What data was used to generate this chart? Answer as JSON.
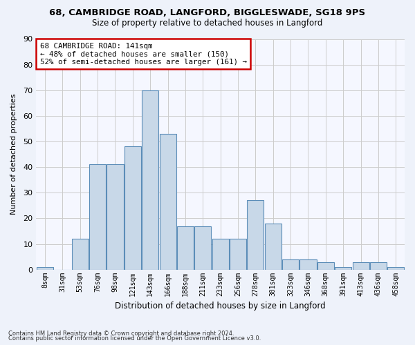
{
  "title1": "68, CAMBRIDGE ROAD, LANGFORD, BIGGLESWADE, SG18 9PS",
  "title2": "Size of property relative to detached houses in Langford",
  "xlabel": "Distribution of detached houses by size in Langford",
  "ylabel": "Number of detached properties",
  "bin_labels": [
    "8sqm",
    "31sqm",
    "53sqm",
    "76sqm",
    "98sqm",
    "121sqm",
    "143sqm",
    "166sqm",
    "188sqm",
    "211sqm",
    "233sqm",
    "256sqm",
    "278sqm",
    "301sqm",
    "323sqm",
    "346sqm",
    "368sqm",
    "391sqm",
    "413sqm",
    "436sqm",
    "458sqm"
  ],
  "bar_heights": [
    1,
    0,
    12,
    41,
    41,
    48,
    70,
    53,
    17,
    17,
    12,
    12,
    27,
    18,
    4,
    4,
    3,
    1,
    3,
    3,
    1
  ],
  "bar_color": "#c8d8e8",
  "bar_edge_color": "#5b8db8",
  "annotation_line1": "68 CAMBRIDGE ROAD: 141sqm",
  "annotation_line2": "← 48% of detached houses are smaller (150)",
  "annotation_line3": "52% of semi-detached houses are larger (161) →",
  "annotation_box_color": "#ffffff",
  "annotation_box_edge_color": "#cc0000",
  "ylim": [
    0,
    90
  ],
  "yticks": [
    0,
    10,
    20,
    30,
    40,
    50,
    60,
    70,
    80,
    90
  ],
  "footer1": "Contains HM Land Registry data © Crown copyright and database right 2024.",
  "footer2": "Contains public sector information licensed under the Open Government Licence v3.0.",
  "bg_color": "#eef2fa",
  "plot_bg_color": "#f5f7ff"
}
